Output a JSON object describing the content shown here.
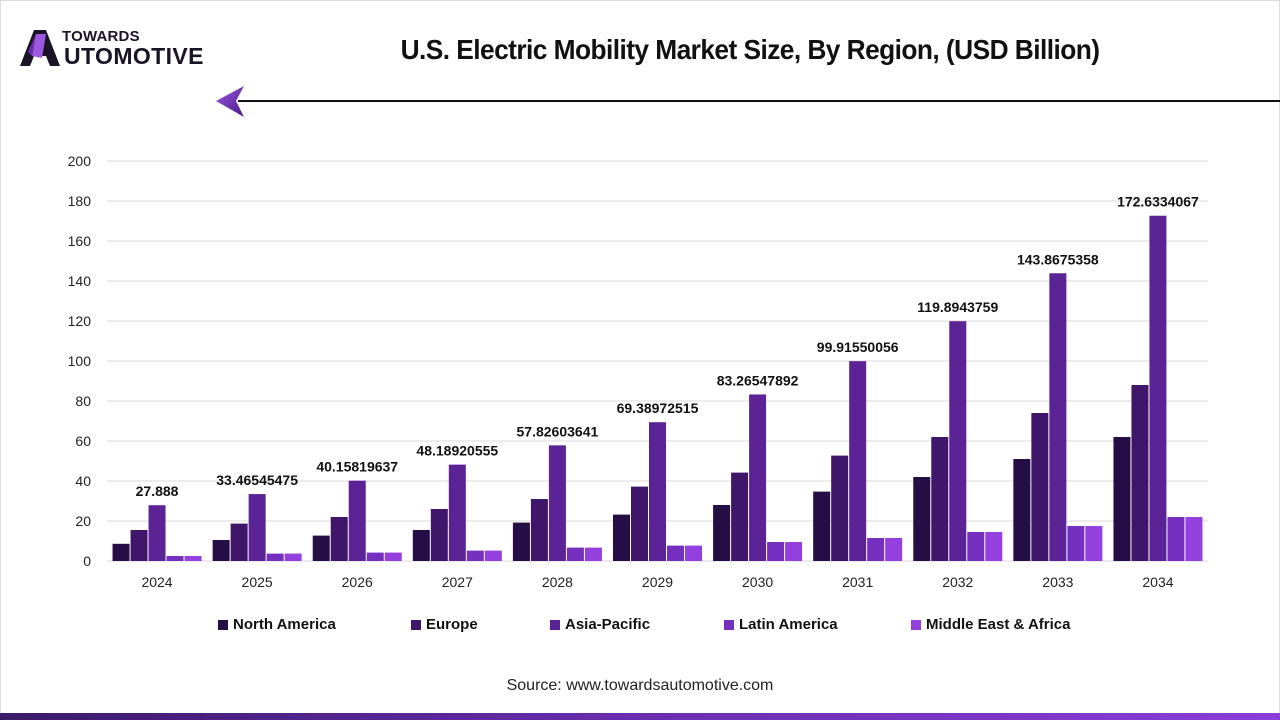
{
  "brand": {
    "line1": "TOWARDS",
    "line2": "AUTOMOTIVE",
    "line2_rest": "UTOMOTIVE"
  },
  "footer": {
    "source": "Source: www.towardsautomotive.com"
  },
  "colors": {
    "North America": "#250e45",
    "Europe": "#3f1669",
    "Asia-Pacific": "#5b2396",
    "Latin America": "#7630bf",
    "Middle East & Africa": "#9340de",
    "grid": "#d9d9d9",
    "accent": "#7b35d0"
  },
  "chart_data": {
    "type": "bar",
    "title": "U.S. Electric Mobility Market Size, By Region, (USD Billion)",
    "xlabel": "",
    "ylabel": "",
    "ylim": [
      0,
      200
    ],
    "yticks": [
      0,
      20,
      40,
      60,
      80,
      100,
      120,
      140,
      160,
      180,
      200
    ],
    "grid": true,
    "legend_position": "bottom",
    "categories": [
      "2024",
      "2025",
      "2026",
      "2027",
      "2028",
      "2029",
      "2030",
      "2031",
      "2032",
      "2033",
      "2034"
    ],
    "series": [
      {
        "name": "North America",
        "values": [
          8.6,
          10.5,
          12.7,
          15.5,
          19.2,
          23.2,
          28.0,
          34.7,
          42.0,
          51.0,
          62.0
        ]
      },
      {
        "name": "Europe",
        "values": [
          15.5,
          18.7,
          22.0,
          26.0,
          31.0,
          37.2,
          44.2,
          52.7,
          62.0,
          74.0,
          88.0
        ]
      },
      {
        "name": "Asia-Pacific",
        "values": [
          27.888,
          33.46545475,
          40.15819637,
          48.18920555,
          57.82603641,
          69.38972515,
          83.26547892,
          99.91550056,
          119.8943759,
          143.8675358,
          172.6334067
        ]
      },
      {
        "name": "Latin America",
        "values": [
          2.5,
          3.7,
          4.2,
          5.2,
          6.7,
          7.7,
          9.5,
          11.5,
          14.5,
          17.5,
          22.0
        ]
      },
      {
        "name": "Middle East & Africa",
        "values": [
          2.5,
          3.7,
          4.2,
          5.2,
          6.7,
          7.7,
          9.5,
          11.5,
          14.5,
          17.5,
          22.0
        ]
      }
    ],
    "data_labels": {
      "series": "Asia-Pacific",
      "labels": [
        "27.888",
        "33.46545475",
        "40.15819637",
        "48.18920555",
        "57.82603641",
        "69.38972515",
        "83.26547892",
        "99.91550056",
        "119.8943759",
        "143.8675358",
        "172.6334067"
      ]
    }
  }
}
